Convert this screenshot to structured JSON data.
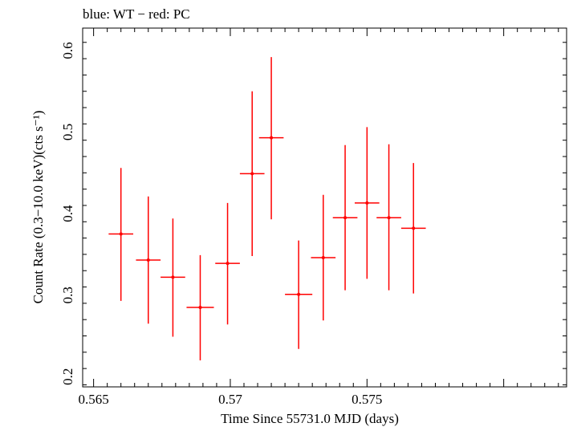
{
  "chart_data": {
    "type": "scatter",
    "title": "blue: WT − red: PC",
    "xlabel": "Time Since 55731.0 MJD (days)",
    "ylabel": "Count Rate (0.3−10.0 keV)(cts s⁻¹)",
    "xlim": [
      0.5646,
      0.5823
    ],
    "ylim": [
      0.1875,
      0.6275
    ],
    "xticks": [
      {
        "value": 0.565,
        "label": "0.565"
      },
      {
        "value": 0.57,
        "label": "0.57"
      },
      {
        "value": 0.575,
        "label": "0.575"
      }
    ],
    "yticks": [
      {
        "value": 0.2,
        "label": "0.2"
      },
      {
        "value": 0.3,
        "label": "0.3"
      },
      {
        "value": 0.4,
        "label": "0.4"
      },
      {
        "value": 0.5,
        "label": "0.5"
      },
      {
        "value": 0.6,
        "label": "0.6"
      }
    ],
    "series": [
      {
        "color": "#ff0000",
        "points": [
          {
            "x": 0.566,
            "xerr": 0.00045,
            "y": 0.375,
            "ylo": 0.293,
            "yhi": 0.456
          },
          {
            "x": 0.567,
            "xerr": 0.00045,
            "y": 0.343,
            "ylo": 0.265,
            "yhi": 0.421
          },
          {
            "x": 0.5679,
            "xerr": 0.00045,
            "y": 0.322,
            "ylo": 0.249,
            "yhi": 0.394
          },
          {
            "x": 0.5689,
            "xerr": 0.0005,
            "y": 0.285,
            "ylo": 0.22,
            "yhi": 0.349
          },
          {
            "x": 0.5699,
            "xerr": 0.00045,
            "y": 0.339,
            "ylo": 0.264,
            "yhi": 0.413
          },
          {
            "x": 0.5708,
            "xerr": 0.00045,
            "y": 0.449,
            "ylo": 0.348,
            "yhi": 0.55
          },
          {
            "x": 0.5715,
            "xerr": 0.00045,
            "y": 0.493,
            "ylo": 0.393,
            "yhi": 0.592
          },
          {
            "x": 0.5725,
            "xerr": 0.0005,
            "y": 0.301,
            "ylo": 0.234,
            "yhi": 0.367
          },
          {
            "x": 0.5734,
            "xerr": 0.00045,
            "y": 0.346,
            "ylo": 0.269,
            "yhi": 0.423
          },
          {
            "x": 0.5742,
            "xerr": 0.00045,
            "y": 0.395,
            "ylo": 0.306,
            "yhi": 0.484
          },
          {
            "x": 0.575,
            "xerr": 0.00045,
            "y": 0.413,
            "ylo": 0.32,
            "yhi": 0.506
          },
          {
            "x": 0.5758,
            "xerr": 0.00045,
            "y": 0.395,
            "ylo": 0.306,
            "yhi": 0.485
          },
          {
            "x": 0.5767,
            "xerr": 0.00045,
            "y": 0.382,
            "ylo": 0.302,
            "yhi": 0.462
          }
        ]
      }
    ]
  }
}
